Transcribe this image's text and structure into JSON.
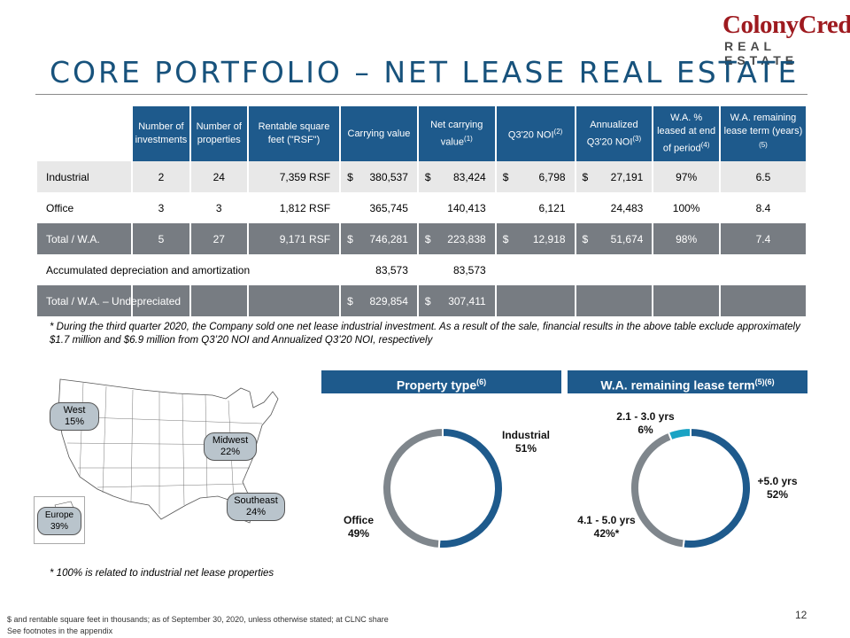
{
  "header": {
    "title": "CORE PORTFOLIO – NET LEASE REAL ESTATE",
    "logo_line1": "ColonyCredit",
    "logo_line2": "REAL ESTATE"
  },
  "table": {
    "columns": [
      {
        "label": "Number of investments",
        "sup": ""
      },
      {
        "label": "Number of properties",
        "sup": ""
      },
      {
        "label": "Rentable square feet (\"RSF\")",
        "sup": ""
      },
      {
        "label": "Carrying value",
        "sup": ""
      },
      {
        "label": "Net carrying value",
        "sup": "(1)"
      },
      {
        "label": "Q3'20 NOI",
        "sup": "(2)"
      },
      {
        "label": "Annualized Q3'20 NOI",
        "sup": "(3)"
      },
      {
        "label": "W.A. % leased at end of period",
        "sup": "(4)"
      },
      {
        "label": "W.A. remaining lease term (years)",
        "sup": "(5)"
      }
    ],
    "rows": [
      {
        "label": "Industrial",
        "style": "shade",
        "cells": [
          "2",
          "24",
          "7,359 RSF",
          "380,537",
          "83,424",
          "6,798",
          "27,191",
          "97%",
          "6.5"
        ],
        "dollar": [
          false,
          false,
          false,
          true,
          true,
          true,
          true,
          false,
          false
        ]
      },
      {
        "label": "Office",
        "style": "plain",
        "cells": [
          "3",
          "3",
          "1,812 RSF",
          "365,745",
          "140,413",
          "6,121",
          "24,483",
          "100%",
          "8.4"
        ],
        "dollar": [
          false,
          false,
          false,
          false,
          false,
          false,
          false,
          false,
          false
        ]
      },
      {
        "label": "Total / W.A.",
        "style": "total",
        "cells": [
          "5",
          "27",
          "9,171 RSF",
          "746,281",
          "223,838",
          "12,918",
          "51,674",
          "98%",
          "7.4"
        ],
        "dollar": [
          false,
          false,
          false,
          true,
          true,
          true,
          true,
          false,
          false
        ]
      },
      {
        "label": "Accumulated depreciation and amortization",
        "style": "plain",
        "cells": [
          "",
          "",
          "",
          "83,573",
          "83,573",
          "",
          "",
          "",
          ""
        ],
        "dollar": [
          false,
          false,
          false,
          false,
          false,
          false,
          false,
          false,
          false
        ]
      },
      {
        "label": "Total / W.A. – Undepreciated",
        "style": "total",
        "cells": [
          "",
          "",
          "",
          "829,854",
          "307,411",
          "",
          "",
          "",
          ""
        ],
        "dollar": [
          false,
          false,
          false,
          true,
          true,
          false,
          false,
          false,
          false
        ]
      }
    ],
    "dollar_sign": "$"
  },
  "notes": {
    "sale_note": "* During the third quarter 2020, the Company sold one net lease industrial investment. As a result of the sale, financial results in the above table exclude approximately $1.7 million and $6.9 million from Q3’20 NOI and Annualized Q3’20 NOI, respectively",
    "industrial_note": "* 100% is related to industrial net lease properties",
    "footer_line1": "$ and rentable square feet in thousands; as of September 30, 2020, unless otherwise stated; at CLNC share",
    "footer_line2": "See footnotes in the appendix",
    "page_number": "12"
  },
  "map": {
    "regions": [
      {
        "name": "West",
        "pct": "15%"
      },
      {
        "name": "Midwest",
        "pct": "22%"
      },
      {
        "name": "Southeast",
        "pct": "24%"
      },
      {
        "name": "Europe",
        "pct": "39%"
      }
    ]
  },
  "chart_data": [
    {
      "type": "pie",
      "title": "Property type",
      "title_sup": "(6)",
      "donut": true,
      "slices": [
        {
          "label": "Industrial",
          "value": 51,
          "display": "51%",
          "color": "#1e5a8c"
        },
        {
          "label": "Office",
          "value": 49,
          "display": "49%",
          "color": "#7f868c"
        }
      ]
    },
    {
      "type": "pie",
      "title": "W.A. remaining lease term",
      "title_sup": "(5)(6)",
      "donut": true,
      "slices": [
        {
          "label": "+5.0 yrs",
          "value": 52,
          "display": "52%",
          "color": "#1e5a8c"
        },
        {
          "label": "4.1 - 5.0 yrs",
          "value": 42,
          "display": "42%*",
          "color": "#7f868c"
        },
        {
          "label": "2.1 - 3.0 yrs",
          "value": 6,
          "display": "6%",
          "color": "#19a3c4"
        }
      ]
    }
  ]
}
